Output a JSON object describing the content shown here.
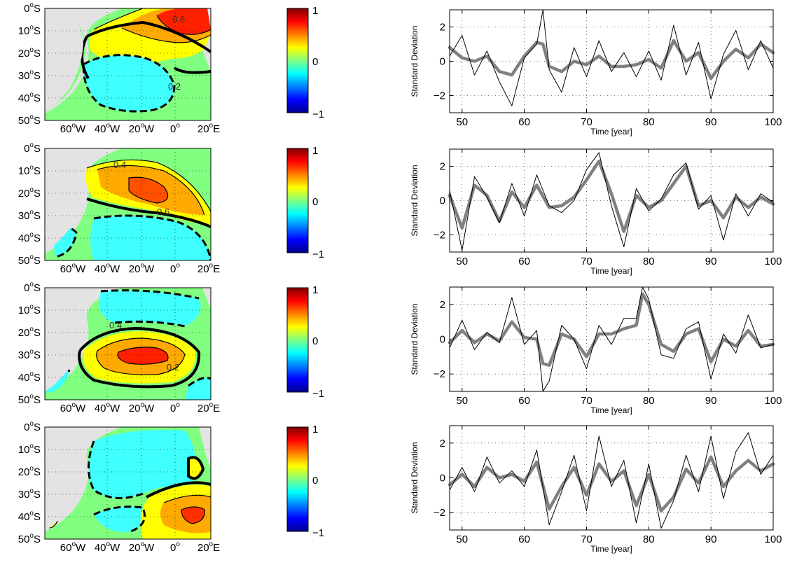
{
  "map_axes": {
    "lat_labels": [
      "0",
      "10",
      "20",
      "30",
      "40",
      "50"
    ],
    "lat_suffix": "S",
    "lon_labels": [
      {
        "value": "60",
        "suffix": "W"
      },
      {
        "value": "40",
        "suffix": "W"
      },
      {
        "value": "20",
        "suffix": "W"
      },
      {
        "value": "0",
        "suffix": ""
      },
      {
        "value": "20",
        "suffix": "E"
      }
    ],
    "degree_mark": "o"
  },
  "colorbar": {
    "ticks": [
      "1",
      "0",
      "−1"
    ],
    "range": [
      -1,
      1
    ],
    "colormap": "jet"
  },
  "contour_labels": [
    "0.6",
    "0.2",
    "0.4",
    "0.6",
    "0.4",
    "0.2",
    "0.4"
  ],
  "colors": {
    "land": "#e3e3e3",
    "thin_series": "#000000",
    "smooth_series": "#808080",
    "grid": "#000000"
  },
  "chart_data": [
    {
      "type": "line",
      "panel": 1,
      "xlabel": "Time [year]",
      "ylabel": "Standard Deviation",
      "xlim": [
        48,
        100
      ],
      "ylim": [
        -3,
        3
      ],
      "xticks": [
        "50",
        "60",
        "70",
        "80",
        "90",
        "100"
      ],
      "yticks": [
        "2",
        "0",
        "−2"
      ],
      "grid": true,
      "x": [
        48,
        50,
        52,
        54,
        56,
        58,
        60,
        62,
        63,
        64,
        66,
        68,
        70,
        72,
        74,
        76,
        78,
        80,
        82,
        84,
        86,
        88,
        90,
        92,
        94,
        96,
        98,
        100
      ],
      "series": [
        {
          "values": [
            0.3,
            1.5,
            -0.8,
            0.6,
            -1.2,
            -2.6,
            0.2,
            1.0,
            3.0,
            -0.5,
            -1.8,
            0.8,
            -0.9,
            1.2,
            -0.6,
            0.5,
            -0.9,
            0.6,
            -1.1,
            2.1,
            -0.8,
            1.1,
            -2.2,
            0.4,
            1.8,
            -0.5,
            1.2,
            -0.4
          ]
        },
        {
          "values": [
            0.8,
            0.2,
            0.0,
            0.3,
            -0.6,
            -0.8,
            0.3,
            1.1,
            1.0,
            -0.3,
            -0.6,
            0.0,
            -0.2,
            0.3,
            -0.3,
            -0.3,
            -0.2,
            0.1,
            -0.4,
            1.2,
            0.0,
            0.5,
            -1.0,
            0.0,
            0.7,
            0.2,
            1.0,
            0.5
          ]
        }
      ]
    },
    {
      "type": "line",
      "panel": 2,
      "xlabel": "Time [year]",
      "ylabel": "Standard Deviation",
      "xlim": [
        48,
        100
      ],
      "ylim": [
        -3,
        3
      ],
      "xticks": [
        "50",
        "60",
        "70",
        "80",
        "90",
        "100"
      ],
      "yticks": [
        "2",
        "0",
        "−2"
      ],
      "grid": true,
      "x": [
        48,
        50,
        52,
        54,
        56,
        58,
        60,
        62,
        64,
        66,
        68,
        70,
        72,
        74,
        76,
        78,
        80,
        82,
        84,
        86,
        88,
        90,
        92,
        94,
        96,
        98,
        100
      ],
      "series": [
        {
          "values": [
            0.6,
            -2.9,
            1.4,
            0.2,
            -1.3,
            1.0,
            -0.9,
            1.5,
            -0.3,
            -0.7,
            0.0,
            1.8,
            2.8,
            -0.3,
            -2.7,
            0.7,
            -0.6,
            0.1,
            1.5,
            2.2,
            -0.5,
            0.3,
            -2.3,
            0.4,
            -0.9,
            0.4,
            -0.1
          ]
        },
        {
          "values": [
            0.3,
            -1.6,
            0.9,
            0.3,
            -1.2,
            0.5,
            -0.4,
            0.9,
            -0.4,
            -0.3,
            0.2,
            1.2,
            2.3,
            0.4,
            -1.8,
            0.3,
            -0.4,
            0.0,
            1.0,
            2.0,
            -0.3,
            0.0,
            -1.0,
            0.2,
            -0.4,
            0.2,
            -0.2
          ]
        }
      ]
    },
    {
      "type": "line",
      "panel": 3,
      "xlabel": "Time [year]",
      "ylabel": "Standard Deviation",
      "xlim": [
        48,
        100
      ],
      "ylim": [
        -3,
        3
      ],
      "xticks": [
        "50",
        "60",
        "70",
        "80",
        "90",
        "100"
      ],
      "yticks": [
        "2",
        "0",
        "−2"
      ],
      "grid": true,
      "x": [
        48,
        50,
        52,
        54,
        56,
        58,
        60,
        62,
        63,
        64,
        66,
        68,
        70,
        72,
        74,
        76,
        78,
        79,
        80,
        82,
        84,
        86,
        88,
        90,
        92,
        94,
        96,
        98,
        100
      ],
      "series": [
        {
          "values": [
            -0.5,
            1.1,
            -0.6,
            0.4,
            -0.2,
            2.4,
            -0.3,
            0.5,
            -3.0,
            -2.4,
            0.8,
            0.0,
            -1.7,
            0.8,
            -0.3,
            1.2,
            1.2,
            3.0,
            2.3,
            -0.9,
            -1.1,
            0.6,
            1.0,
            -2.3,
            0.3,
            -0.8,
            1.4,
            -0.5,
            -0.3
          ]
        },
        {
          "values": [
            -0.2,
            0.5,
            -0.2,
            0.3,
            -0.1,
            1.0,
            0.1,
            0.0,
            -1.4,
            -1.5,
            0.3,
            0.0,
            -1.0,
            0.3,
            0.3,
            0.6,
            0.8,
            2.6,
            2.0,
            -0.3,
            -0.7,
            0.3,
            0.6,
            -1.3,
            0.0,
            -0.4,
            0.5,
            -0.4,
            -0.3
          ]
        }
      ]
    },
    {
      "type": "line",
      "panel": 4,
      "xlabel": "Time [year]",
      "ylabel": "Standard Deviation",
      "xlim": [
        48,
        100
      ],
      "ylim": [
        -3,
        3
      ],
      "xticks": [
        "50",
        "60",
        "70",
        "80",
        "90",
        "100"
      ],
      "yticks": [
        "2",
        "0",
        "−2"
      ],
      "grid": true,
      "x": [
        48,
        50,
        52,
        54,
        56,
        58,
        60,
        62,
        64,
        66,
        68,
        70,
        72,
        74,
        76,
        78,
        80,
        82,
        84,
        86,
        88,
        90,
        92,
        94,
        96,
        98,
        100
      ],
      "series": [
        {
          "values": [
            -0.7,
            0.6,
            -0.8,
            1.2,
            -0.3,
            0.4,
            -0.5,
            1.6,
            -2.7,
            -0.8,
            1.3,
            -1.9,
            2.4,
            -0.5,
            1.0,
            -2.6,
            0.8,
            -2.9,
            -1.3,
            1.3,
            -0.8,
            2.4,
            -1.2,
            1.5,
            2.6,
            0.2,
            1.3
          ]
        },
        {
          "values": [
            -0.4,
            0.2,
            -0.5,
            0.6,
            0.0,
            0.2,
            -0.2,
            0.9,
            -1.8,
            -0.5,
            0.6,
            -1.0,
            0.8,
            -0.2,
            0.4,
            -1.6,
            0.2,
            -1.9,
            -1.1,
            0.5,
            -0.3,
            1.2,
            -0.5,
            0.4,
            1.0,
            0.4,
            0.8
          ]
        }
      ]
    }
  ]
}
